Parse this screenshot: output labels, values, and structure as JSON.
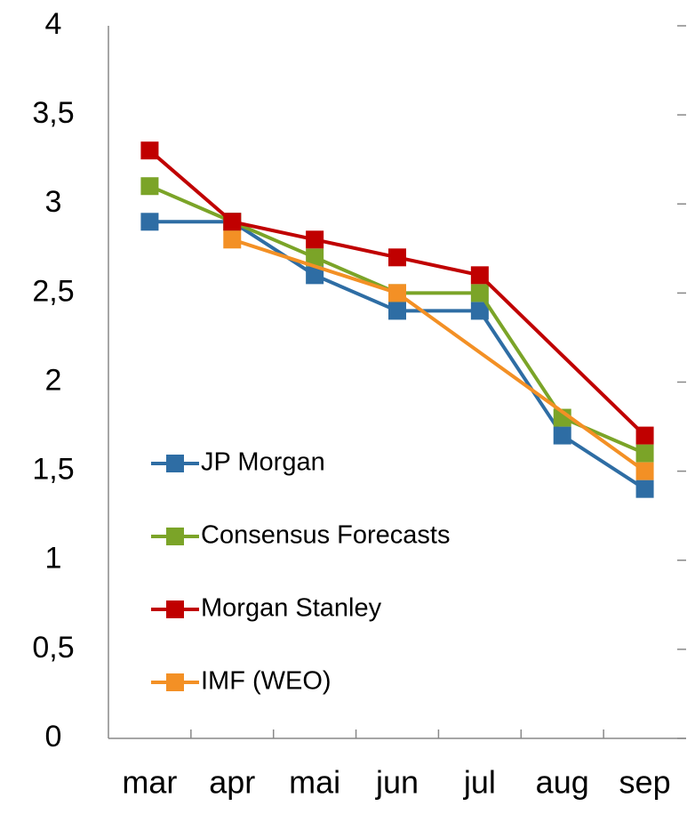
{
  "chart_data": {
    "type": "line",
    "categories": [
      "mar",
      "apr",
      "mai",
      "jun",
      "jul",
      "aug",
      "sep"
    ],
    "series": [
      {
        "name": "JP Morgan",
        "color": "#2e6da4",
        "values": [
          2.9,
          2.9,
          2.6,
          2.4,
          2.4,
          1.7,
          1.4
        ]
      },
      {
        "name": "Consensus Forecasts",
        "color": "#7ba428",
        "values": [
          3.1,
          2.9,
          2.7,
          2.5,
          2.5,
          1.8,
          1.6
        ]
      },
      {
        "name": "Morgan Stanley",
        "color": "#c00000",
        "values": [
          3.3,
          2.9,
          2.8,
          2.7,
          2.6,
          null,
          1.7
        ]
      },
      {
        "name": "IMF (WEO)",
        "color": "#f39025",
        "values": [
          null,
          2.8,
          null,
          2.5,
          null,
          null,
          1.5
        ]
      }
    ],
    "ylim": [
      0,
      4
    ],
    "yticks": [
      0,
      {
        "value": 0.5,
        "label": "0,5"
      },
      1,
      {
        "value": 1.5,
        "label": "1,5"
      },
      2,
      {
        "value": 2.5,
        "label": "2,5"
      },
      3,
      {
        "value": 3.5,
        "label": "3,5"
      },
      4
    ],
    "connect_gaps": true,
    "legend": "left",
    "grid": false
  }
}
